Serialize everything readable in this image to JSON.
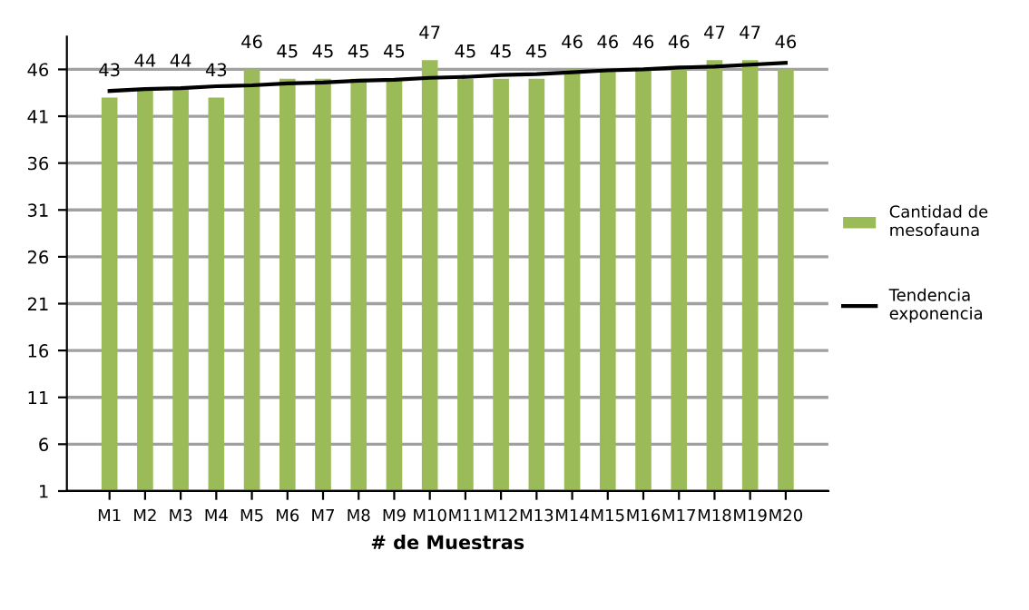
{
  "chart_data": {
    "type": "bar",
    "xlabel": "# de Muestras",
    "categories": [
      "M1",
      "M2",
      "M3",
      "M4",
      "M5",
      "M6",
      "M7",
      "M8",
      "M9",
      "M10",
      "M11",
      "M12",
      "M13",
      "M14",
      "M15",
      "M16",
      "M17",
      "M18",
      "M19",
      "M20"
    ],
    "series": [
      {
        "name": "Cantidad de\nmesofauna",
        "color": "#9bbb59",
        "values": [
          43,
          44,
          44,
          43,
          46,
          45,
          45,
          45,
          45,
          47,
          45,
          45,
          45,
          46,
          46,
          46,
          46,
          47,
          47,
          46
        ],
        "value_labels": [
          "43",
          "44",
          "44",
          "43",
          "46",
          "45",
          "45",
          "45",
          "45",
          "47",
          "45",
          "45",
          "45",
          "46",
          "46",
          "46",
          "46",
          "47",
          "47",
          "46"
        ]
      },
      {
        "name": "Tendencia\nexponencia",
        "type": "line",
        "color": "#000000",
        "values": [
          43.7,
          43.9,
          44.0,
          44.2,
          44.3,
          44.5,
          44.6,
          44.8,
          44.9,
          45.1,
          45.2,
          45.4,
          45.5,
          45.7,
          45.9,
          46.0,
          46.2,
          46.3,
          46.5,
          46.7
        ]
      }
    ],
    "ylim": [
      1,
      49.5
    ],
    "yticks": [
      1,
      6,
      11,
      16,
      21,
      26,
      31,
      36,
      41,
      46
    ],
    "grid": "y",
    "legend": "right"
  }
}
